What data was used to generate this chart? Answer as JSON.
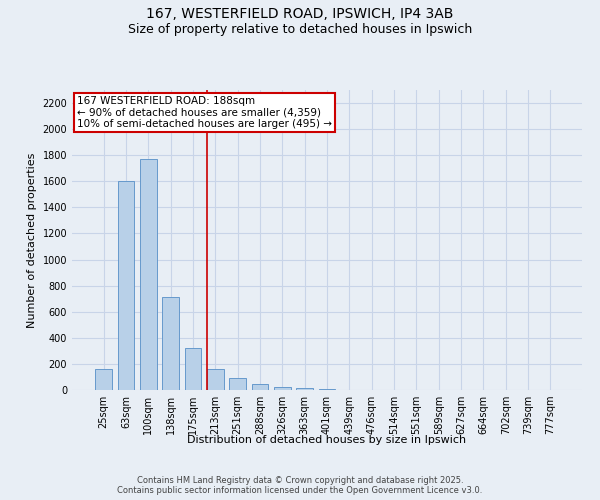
{
  "title_line1": "167, WESTERFIELD ROAD, IPSWICH, IP4 3AB",
  "title_line2": "Size of property relative to detached houses in Ipswich",
  "xlabel": "Distribution of detached houses by size in Ipswich",
  "ylabel": "Number of detached properties",
  "categories": [
    "25sqm",
    "63sqm",
    "100sqm",
    "138sqm",
    "175sqm",
    "213sqm",
    "251sqm",
    "288sqm",
    "326sqm",
    "363sqm",
    "401sqm",
    "439sqm",
    "476sqm",
    "514sqm",
    "551sqm",
    "589sqm",
    "627sqm",
    "664sqm",
    "702sqm",
    "739sqm",
    "777sqm"
  ],
  "values": [
    160,
    1600,
    1770,
    710,
    320,
    160,
    90,
    45,
    20,
    15,
    5,
    0,
    0,
    0,
    0,
    0,
    0,
    0,
    0,
    0,
    0
  ],
  "bar_color": "#b8d0e8",
  "bar_edge_color": "#6699cc",
  "bar_width": 0.75,
  "ylim": [
    0,
    2300
  ],
  "yticks": [
    0,
    200,
    400,
    600,
    800,
    1000,
    1200,
    1400,
    1600,
    1800,
    2000,
    2200
  ],
  "red_line_x": 4.62,
  "annotation_text_line1": "167 WESTERFIELD ROAD: 188sqm",
  "annotation_text_line2": "← 90% of detached houses are smaller (4,359)",
  "annotation_text_line3": "10% of semi-detached houses are larger (495) →",
  "annotation_box_color": "#ffffff",
  "annotation_box_edge_color": "#cc0000",
  "red_line_color": "#cc0000",
  "grid_color": "#c8d4e8",
  "background_color": "#e8eef5",
  "footer_line1": "Contains HM Land Registry data © Crown copyright and database right 2025.",
  "footer_line2": "Contains public sector information licensed under the Open Government Licence v3.0.",
  "title_fontsize": 10,
  "subtitle_fontsize": 9,
  "axis_label_fontsize": 8,
  "tick_fontsize": 7,
  "annotation_fontsize": 7.5,
  "footer_fontsize": 6
}
